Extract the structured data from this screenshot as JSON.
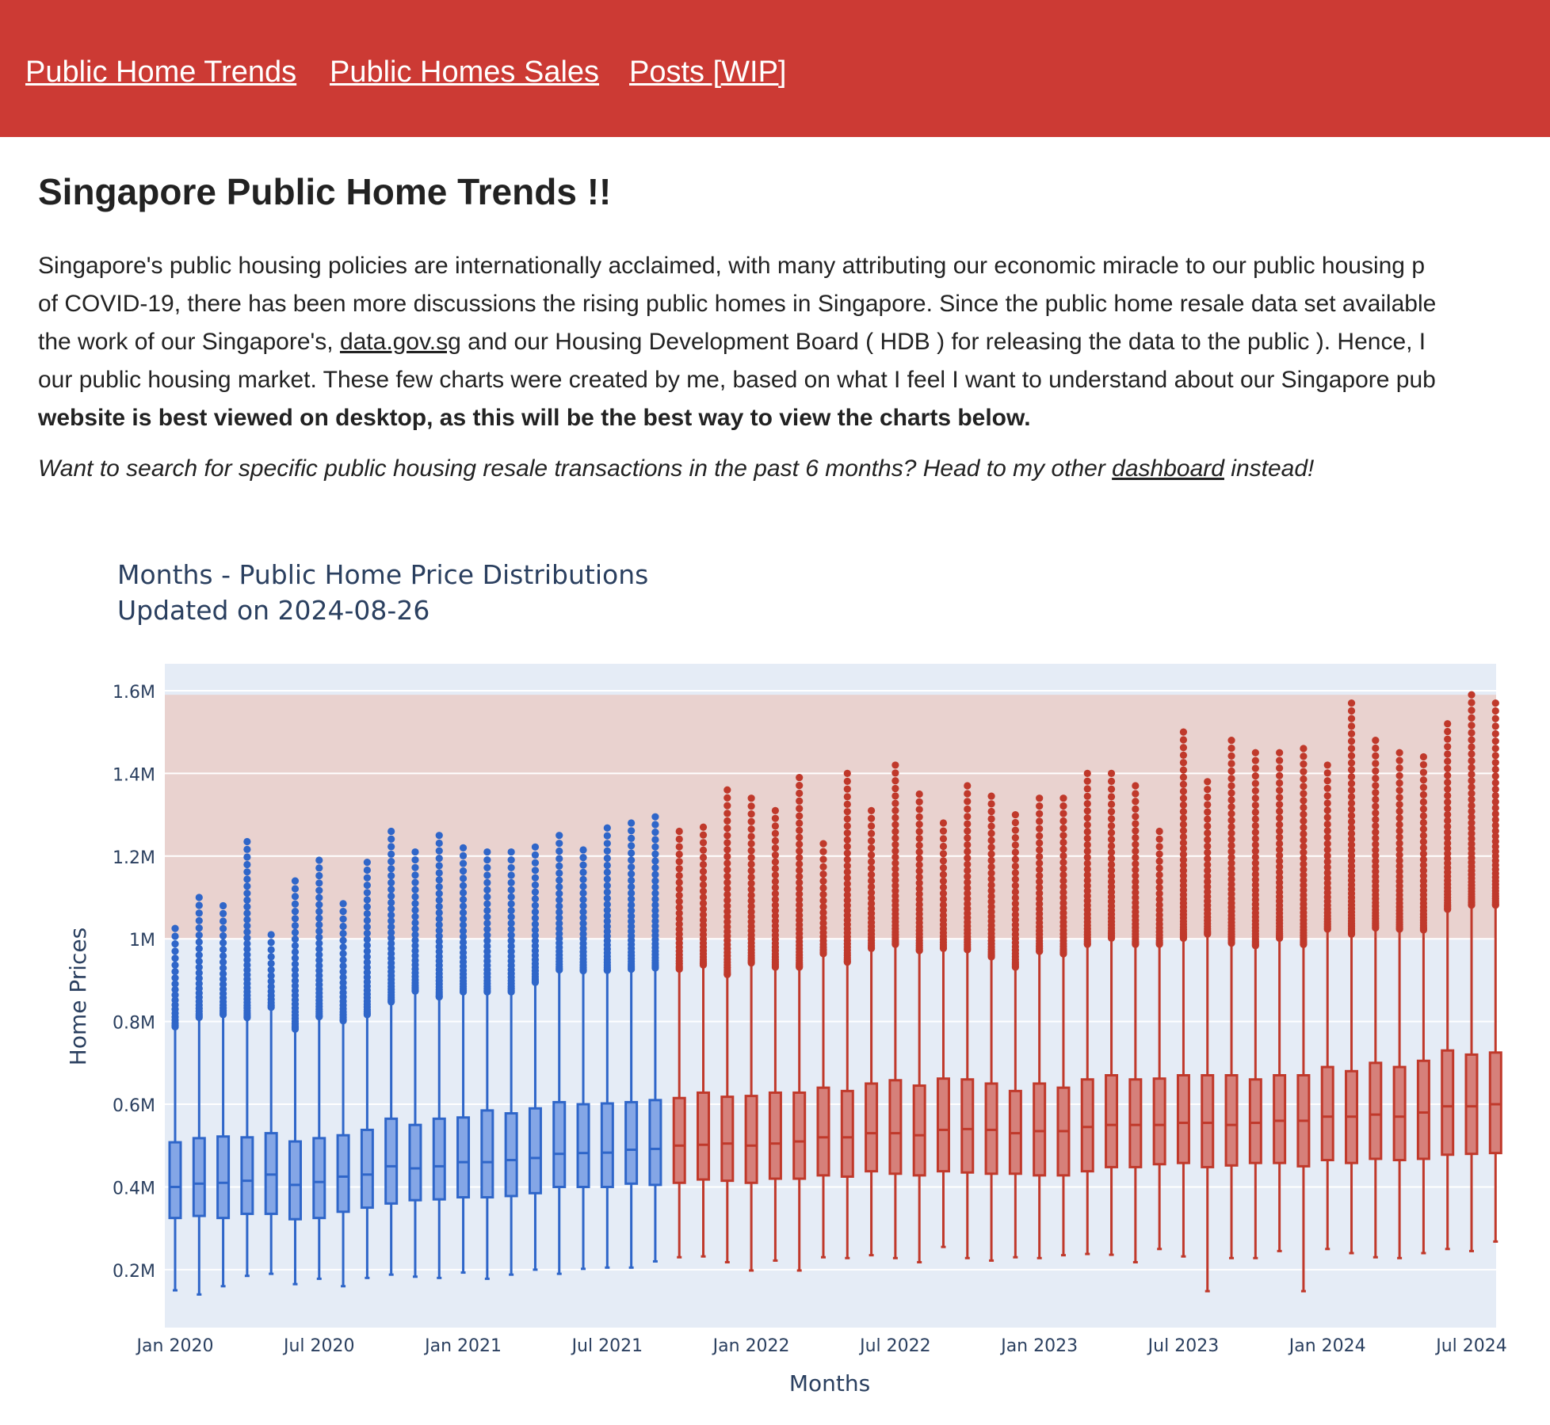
{
  "nav": {
    "links": [
      "Public Home Trends",
      "Public Homes Sales",
      "Posts [WIP]"
    ]
  },
  "page": {
    "heading": "Singapore Public Home Trends !!",
    "intro_lines": [
      "Singapore's public housing policies are internationally acclaimed, with many attributing our economic miracle to our public housing p",
      "of COVID-19, there has been more discussions the rising public homes in Singapore. Since the public home resale data set available",
      "our public housing market. These few charts were created by me, based on what I feel I want to understand about our Singapore pub"
    ],
    "intro_line3_before": "the work of our Singapore's, ",
    "intro_link": "data.gov.sg",
    "intro_line3_after": " and our Housing Development Board ( HDB ) for releasing the data to the public ). Hence, I",
    "intro_bold": "website is best viewed on desktop, as this will be the best way to view the charts below.",
    "search_before": "Want to search for specific public housing resale transactions in the past 6 months? Head to my other ",
    "search_link": "dashboard",
    "search_after": " instead!"
  },
  "colors": {
    "nav_bg": "#cc3a34",
    "plot_bg": "#e5ecf6",
    "highlight_band": "#e9d2cf",
    "blue_series": "#2f66c9",
    "red_series": "#c0392b",
    "axis_text": "#2a3f5f"
  },
  "chart_data": {
    "type": "box",
    "title": "Months - Public Home Price Distributions",
    "subtitle": "Updated on 2024-08-26",
    "xlabel": "Months",
    "ylabel": "Home Prices",
    "x_tick_labels": [
      "Jan 2020",
      "Jul 2020",
      "Jan 2021",
      "Jul 2021",
      "Jan 2022",
      "Jul 2022",
      "Jan 2023",
      "Jul 2023",
      "Jan 2024",
      "Jul 2024"
    ],
    "y_tick_labels": [
      "0.2M",
      "0.4M",
      "0.6M",
      "0.8M",
      "1M",
      "1.2M",
      "1.4M",
      "1.6M"
    ],
    "y_ticks": [
      200000,
      400000,
      600000,
      800000,
      1000000,
      1200000,
      1400000,
      1600000
    ],
    "ylim": [
      60000,
      1665000
    ],
    "x_start": "2020-01",
    "x_end": "2024-07",
    "highlight_band": {
      "from": 1000000,
      "to": 1590000
    },
    "grid": true,
    "series": [
      {
        "months": [
          "2020-01",
          "2020-02",
          "2020-03",
          "2020-04",
          "2020-05",
          "2020-06",
          "2020-07",
          "2020-08",
          "2020-09",
          "2020-10",
          "2020-11",
          "2020-12",
          "2021-01",
          "2021-02",
          "2021-03",
          "2021-04",
          "2021-05",
          "2021-06",
          "2021-07",
          "2021-08",
          "2021-09"
        ],
        "q1": [
          325000,
          330000,
          325000,
          335000,
          335000,
          322000,
          325000,
          340000,
          350000,
          360000,
          368000,
          370000,
          375000,
          375000,
          378000,
          385000,
          400000,
          400000,
          400000,
          408000,
          405000
        ],
        "median": [
          400000,
          408000,
          410000,
          415000,
          430000,
          405000,
          412000,
          425000,
          430000,
          450000,
          445000,
          450000,
          460000,
          460000,
          465000,
          470000,
          480000,
          482000,
          483000,
          490000,
          492000
        ],
        "q3": [
          508000,
          518000,
          522000,
          520000,
          530000,
          510000,
          518000,
          525000,
          538000,
          565000,
          550000,
          565000,
          568000,
          585000,
          578000,
          590000,
          605000,
          600000,
          602000,
          605000,
          610000
        ],
        "lower": [
          150000,
          140000,
          160000,
          185000,
          190000,
          165000,
          178000,
          160000,
          180000,
          188000,
          183000,
          180000,
          193000,
          178000,
          188000,
          200000,
          190000,
          202000,
          205000,
          205000,
          220000
        ],
        "upper": [
          785000,
          808000,
          815000,
          808000,
          832000,
          780000,
          810000,
          800000,
          815000,
          846000,
          872000,
          858000,
          870000,
          870000,
          870000,
          893000,
          923000,
          921000,
          922000,
          925000,
          928000
        ],
        "max_outlier": [
          1025000,
          1100000,
          1080000,
          1235000,
          1010000,
          1140000,
          1190000,
          1085000,
          1185000,
          1260000,
          1210000,
          1250000,
          1220000,
          1210000,
          1210000,
          1222000,
          1250000,
          1215000,
          1268000,
          1280000,
          1295000
        ]
      },
      {
        "months": [
          "2021-10",
          "2021-11",
          "2021-12",
          "2022-01",
          "2022-02",
          "2022-03",
          "2022-04",
          "2022-05",
          "2022-06",
          "2022-07",
          "2022-08",
          "2022-09",
          "2022-10",
          "2022-11",
          "2022-12",
          "2023-01",
          "2023-02",
          "2023-03",
          "2023-04",
          "2023-05",
          "2023-06",
          "2023-07",
          "2023-08",
          "2023-09",
          "2023-10",
          "2023-11",
          "2023-12",
          "2024-01",
          "2024-02",
          "2024-03",
          "2024-04",
          "2024-05",
          "2024-06",
          "2024-07",
          "2024-08"
        ],
        "q1": [
          410000,
          418000,
          415000,
          410000,
          420000,
          420000,
          428000,
          425000,
          438000,
          432000,
          428000,
          438000,
          435000,
          432000,
          432000,
          428000,
          428000,
          438000,
          448000,
          448000,
          455000,
          458000,
          448000,
          452000,
          458000,
          458000,
          450000,
          465000,
          458000,
          468000,
          465000,
          468000,
          478000,
          480000,
          482000
        ],
        "median": [
          500000,
          502000,
          505000,
          500000,
          505000,
          510000,
          520000,
          520000,
          530000,
          530000,
          525000,
          538000,
          540000,
          538000,
          530000,
          535000,
          535000,
          545000,
          550000,
          550000,
          550000,
          555000,
          555000,
          550000,
          555000,
          560000,
          560000,
          570000,
          570000,
          575000,
          570000,
          580000,
          595000,
          595000,
          600000
        ],
        "q3": [
          615000,
          628000,
          618000,
          620000,
          628000,
          628000,
          640000,
          632000,
          650000,
          658000,
          645000,
          662000,
          660000,
          650000,
          632000,
          650000,
          640000,
          660000,
          670000,
          660000,
          662000,
          670000,
          670000,
          670000,
          660000,
          670000,
          670000,
          690000,
          680000,
          700000,
          690000,
          705000,
          730000,
          720000,
          725000
        ],
        "lower": [
          230000,
          232000,
          218000,
          198000,
          222000,
          198000,
          230000,
          228000,
          235000,
          228000,
          218000,
          255000,
          228000,
          222000,
          230000,
          228000,
          235000,
          238000,
          236000,
          218000,
          250000,
          232000,
          148000,
          228000,
          228000,
          245000,
          148000,
          250000,
          240000,
          230000,
          228000,
          240000,
          250000,
          245000,
          268000
        ],
        "upper": [
          925000,
          935000,
          912000,
          940000,
          930000,
          930000,
          962000,
          942000,
          975000,
          985000,
          970000,
          975000,
          972000,
          955000,
          930000,
          968000,
          962000,
          985000,
          1000000,
          985000,
          985000,
          1000000,
          1010000,
          988000,
          982000,
          1000000,
          985000,
          1022000,
          1010000,
          1025000,
          1022000,
          1020000,
          1070000,
          1080000,
          1080000
        ],
        "max_outlier": [
          1260000,
          1270000,
          1360000,
          1340000,
          1310000,
          1390000,
          1230000,
          1400000,
          1310000,
          1420000,
          1350000,
          1280000,
          1370000,
          1345000,
          1300000,
          1340000,
          1340000,
          1400000,
          1400000,
          1370000,
          1260000,
          1500000,
          1380000,
          1480000,
          1450000,
          1450000,
          1460000,
          1420000,
          1570000,
          1480000,
          1450000,
          1440000,
          1520000,
          1590000,
          1570000
        ]
      }
    ]
  }
}
